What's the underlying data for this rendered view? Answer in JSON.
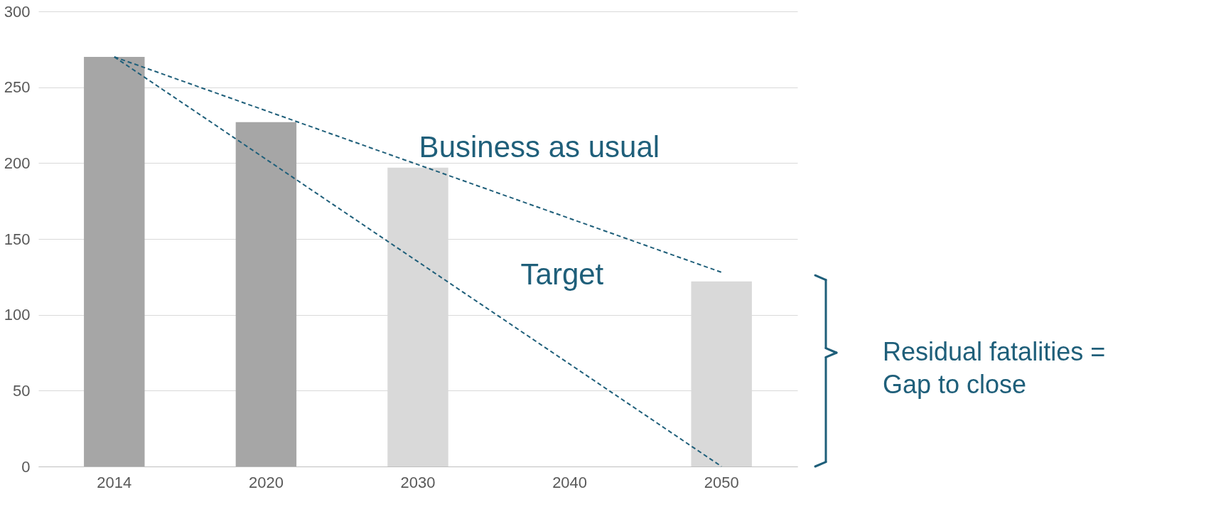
{
  "chart_data": {
    "type": "bar",
    "categories": [
      "2014",
      "2020",
      "2030",
      "2040",
      "2050"
    ],
    "series": [
      {
        "colors": [
          "#a6a6a6",
          "#a6a6a6",
          "#d9d9d9",
          null,
          "#d9d9d9"
        ],
        "values": [
          270,
          227,
          197,
          null,
          122
        ]
      },
      {
        "type": "line",
        "color": "#1f5f7a",
        "line_style": "dashed",
        "values": [
          270,
          null,
          null,
          null,
          128
        ]
      },
      {
        "type": "line",
        "color": "#1f5f7a",
        "line_style": "dashed",
        "values": [
          270,
          null,
          null,
          null,
          0
        ]
      }
    ],
    "ylim": [
      0,
      300
    ],
    "yticks": [
      0,
      50,
      100,
      150,
      200,
      250,
      300
    ],
    "grid": "y",
    "marker": "none",
    "annotations": [
      "Business as usual",
      "Target",
      "Residual fatalities =\nGap to close"
    ]
  }
}
